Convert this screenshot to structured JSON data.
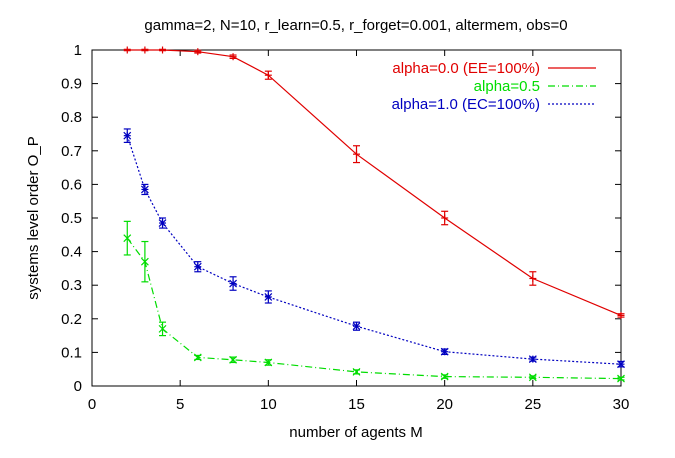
{
  "chart_data": {
    "type": "line",
    "title": "gamma=2, N=10, r_learn=0.5, r_forget=0.001, altermem, obs=0",
    "xlabel": "number of agents M",
    "ylabel": "systems level order O_P",
    "xlim": [
      0,
      30
    ],
    "ylim": [
      0,
      1
    ],
    "x_ticks": [
      0,
      5,
      10,
      15,
      20,
      25,
      30
    ],
    "y_ticks": [
      0,
      0.1,
      0.2,
      0.3,
      0.4,
      0.5,
      0.6,
      0.7,
      0.8,
      0.9,
      1
    ],
    "grid": false,
    "legend_position": "top-right",
    "series": [
      {
        "name": "alpha=0.0 (EE=100%)",
        "color": "#e00000",
        "dash": "solid",
        "marker": "plus",
        "x": [
          2,
          3,
          4,
          6,
          8,
          10,
          15,
          20,
          25,
          30
        ],
        "y": [
          1.0,
          1.0,
          1.0,
          0.995,
          0.98,
          0.925,
          0.69,
          0.5,
          0.32,
          0.21
        ],
        "err": [
          0.002,
          0.002,
          0.002,
          0.004,
          0.005,
          0.012,
          0.025,
          0.02,
          0.02,
          0.005
        ]
      },
      {
        "name": "alpha=0.5",
        "color": "#00dd00",
        "dash": "dashdot",
        "marker": "x",
        "x": [
          2,
          3,
          4,
          6,
          8,
          10,
          15,
          20,
          25,
          30
        ],
        "y": [
          0.44,
          0.37,
          0.17,
          0.085,
          0.078,
          0.07,
          0.042,
          0.028,
          0.026,
          0.022
        ],
        "err": [
          0.05,
          0.06,
          0.02,
          0.006,
          0.008,
          0.008,
          0.006,
          0.005,
          0.004,
          0.004
        ]
      },
      {
        "name": "alpha=1.0 (EC=100%)",
        "color": "#0000c0",
        "dash": "dotted",
        "marker": "star",
        "x": [
          2,
          3,
          4,
          6,
          8,
          10,
          15,
          20,
          25,
          30
        ],
        "y": [
          0.745,
          0.585,
          0.485,
          0.355,
          0.305,
          0.265,
          0.178,
          0.102,
          0.08,
          0.065
        ],
        "err": [
          0.02,
          0.015,
          0.015,
          0.015,
          0.02,
          0.018,
          0.012,
          0.008,
          0.006,
          0.008
        ]
      }
    ]
  }
}
